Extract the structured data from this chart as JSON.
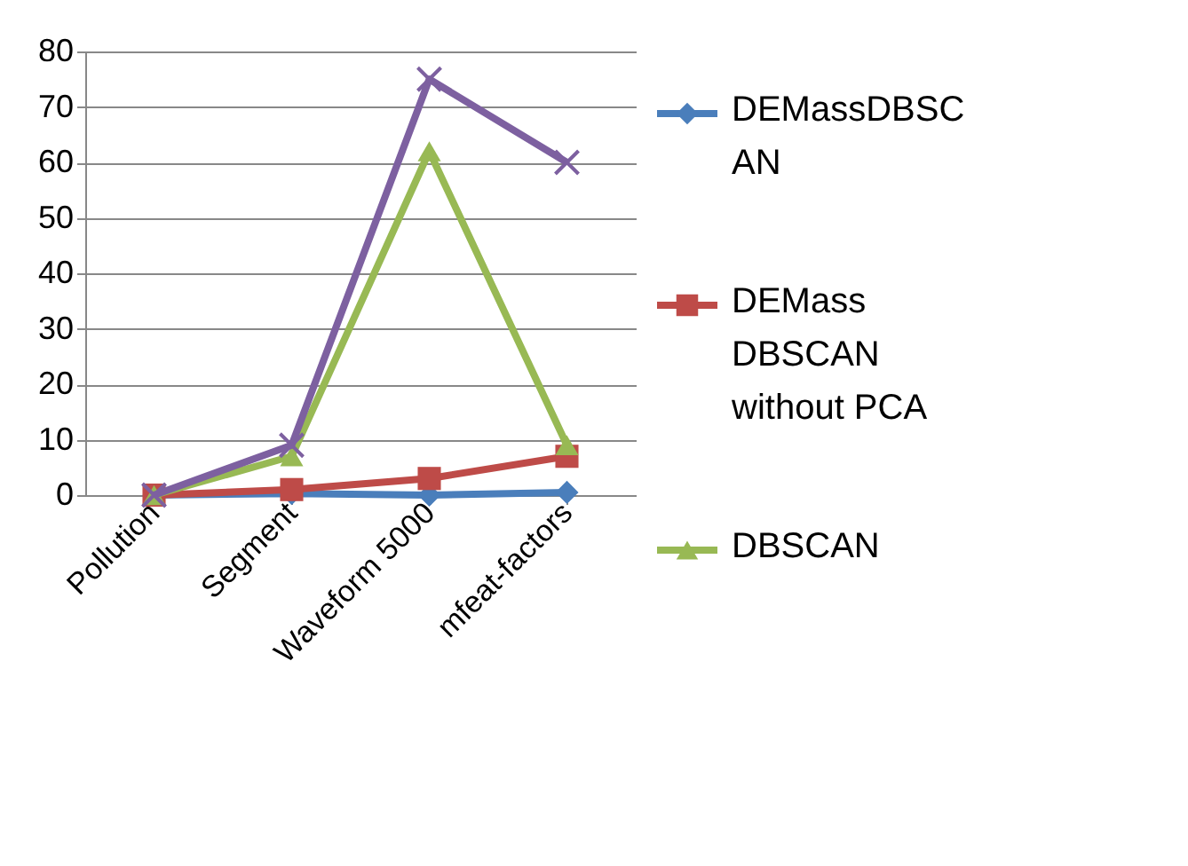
{
  "chart_data": {
    "type": "line",
    "categories": [
      "Pollution",
      "Segment",
      "Waveform 5000",
      "mfeat-factors"
    ],
    "series": [
      {
        "name": "DEMassDBSCAN",
        "color": "#4a7ebb",
        "marker": "diamond",
        "values": [
          0,
          0.3,
          0,
          0.5
        ]
      },
      {
        "name": "DEMass DBSCAN without PCA",
        "color": "#be4b48",
        "marker": "square",
        "values": [
          0,
          1,
          3,
          7
        ]
      },
      {
        "name": "DBSCAN",
        "color": "#98b954",
        "marker": "triangle",
        "values": [
          0,
          7,
          62,
          9
        ]
      },
      {
        "color": "#7d60a0",
        "marker": "cross",
        "values": [
          0,
          9,
          75,
          60
        ]
      }
    ],
    "ylim": [
      0,
      80
    ],
    "yticks": [
      0,
      10,
      20,
      30,
      40,
      50,
      60,
      70,
      80
    ],
    "grid": "y",
    "legend": "right",
    "line_style": "solid"
  }
}
